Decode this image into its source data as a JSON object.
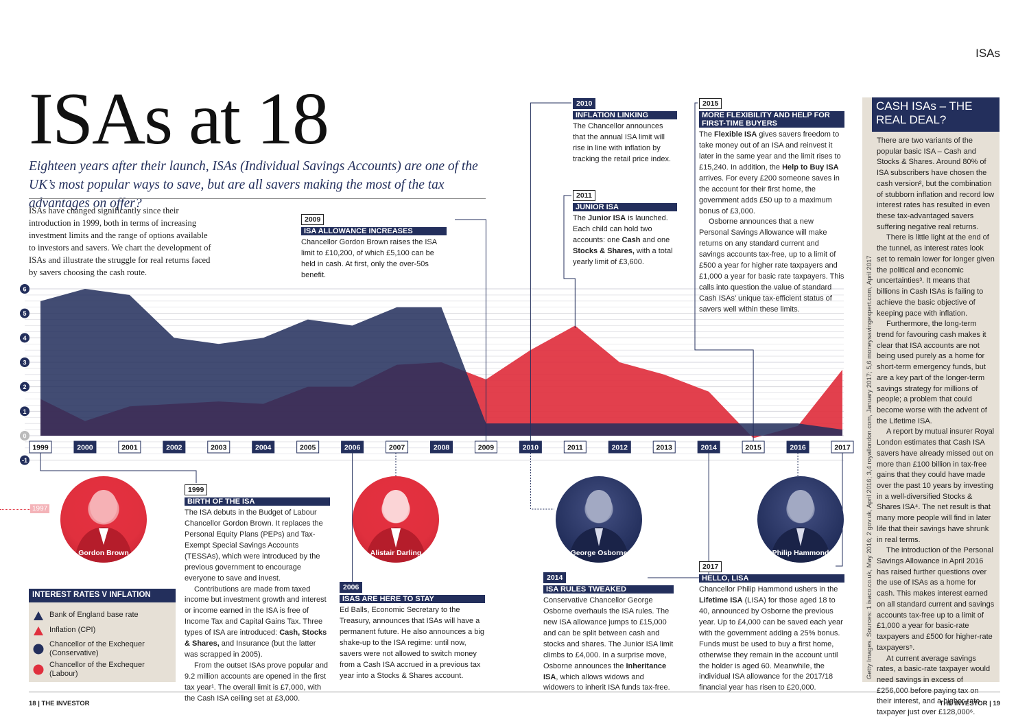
{
  "section_label": "ISAs",
  "title": "ISAs at 18",
  "subtitle": "Eighteen years after their launch, ISAs (Individual Savings Accounts) are one of the UK’s most popular ways to save, but are all savers making the most of the tax advantages on offer?",
  "intro": "ISAs have changed significantly since their introduction in 1999, both in terms of increasing investment limits and the range of options available to investors and savers. We chart the development of ISAs and illustrate the struggle for real returns faced by savers choosing the cash route.",
  "cards": {
    "c2009": {
      "year": "2009",
      "heading": "ISA ALLOWANCE INCREASES",
      "paras": [
        "Chancellor Gordon Brown raises the ISA limit to £10,200, of which £5,100 can be held in cash. At first, only the over-50s benefit."
      ]
    },
    "c2010": {
      "year": "2010",
      "heading": "INFLATION LINKING",
      "paras": [
        "The Chancellor announces that the annual ISA limit will rise in line with inflation by tracking the retail price index."
      ]
    },
    "c2011": {
      "year": "2011",
      "heading": "JUNIOR ISA",
      "paras": [
        "The Junior ISA is launched. Each child can hold two accounts: one Cash and one Stocks & Shares, with a total yearly limit of £3,600."
      ]
    },
    "c2015": {
      "year": "2015",
      "heading": "MORE FLEXIBILITY AND HELP FOR FIRST-TIME BUYERS",
      "paras": [
        "The Flexible ISA gives savers freedom to take money out of an ISA and reinvest it later in the same year and the limit rises to £15,240. In addition, the Help to Buy ISA arrives. For every £200 someone saves in the account for their first home, the government adds £50 up to a maximum bonus of £3,000.",
        "Osborne announces that a new Personal Savings Allowance will make returns on any standard current and savings accounts tax-free, up to a limit of £500 a year for higher rate taxpayers and £1,000 a year for basic rate taxpayers. This calls into question the value of standard Cash ISAs’ unique tax-efficient status of savers well within these limits."
      ]
    },
    "c1999": {
      "year": "1999",
      "heading": "BIRTH OF THE ISA",
      "paras": [
        "The ISA debuts in the Budget of Labour Chancellor Gordon Brown. It replaces the Personal Equity Plans (PEPs) and Tax-Exempt Special Savings Accounts (TESSAs), which were introduced by the previous government to encourage everyone to save and invest.",
        "Contributions are made from taxed income but investment growth and interest or income earned in the ISA is free of Income Tax and Capital Gains Tax. Three types of ISA are introduced: Cash, Stocks & Shares, and Insurance (but the latter was scrapped in 2005).",
        "From the outset ISAs prove popular and 9.2 million accounts are opened in the first tax year¹. The overall limit is £7,000, with the Cash ISA ceiling set at £3,000."
      ]
    },
    "c2006": {
      "year": "2006",
      "heading": "ISAs ARE HERE TO STAY",
      "paras": [
        "Ed Balls, Economic Secretary to the Treasury, announces that ISAs will have a permanent future. He also announces a big shake-up to the ISA regime: until now, savers were not allowed to switch money from a Cash ISA accrued in a previous tax year into a Stocks & Shares account."
      ]
    },
    "c2014": {
      "year": "2014",
      "heading": "ISA RULES TWEAKED",
      "paras": [
        "Conservative Chancellor George Osborne overhauls the ISA rules. The new ISA allowance jumps to £15,000 and can be split between cash and stocks and shares. The Junior ISA limit climbs to £4,000. In a surprise move, Osborne announces the Inheritance ISA, which allows widows and widowers to inherit ISA funds tax-free."
      ]
    },
    "c2017": {
      "year": "2017",
      "heading": "HELLO, LISA",
      "paras": [
        "Chancellor Philip Hammond ushers in the Lifetime ISA (LISA) for those aged 18 to 40, announced by Osborne the previous year. Up to £4,000 can be saved each year with the government adding a 25% bonus. Funds must be used to buy a first home, otherwise they remain in the account until the holder is aged 60. Meanwhile, the individual ISA allowance for the 2017/18 financial year has risen to £20,000."
      ]
    }
  },
  "people": {
    "brown": "Gordon Brown",
    "darling": "Alistair Darling",
    "osborne": "George Osborne",
    "hammond": "Philip Hammond"
  },
  "marker_1997": "1997",
  "sidebar": {
    "title": "CASH ISAs – THE REAL DEAL?",
    "paras": [
      "There are two variants of the popular basic ISA – Cash and Stocks & Shares. Around 80% of ISA subscribers have chosen the cash version², but the combination of stubborn inflation and record low interest rates has resulted in even these tax-advantaged savers suffering negative real returns.",
      "There is little light at the end of the tunnel, as interest rates look set to remain lower for longer given the political and economic uncertainties³. It means that billions in Cash ISAs is failing to achieve the basic objective of keeping pace with inflation.",
      "Furthermore, the long-term trend for favouring cash makes it clear that ISA accounts are not being used purely as a home for short-term emergency funds, but are a key part of the longer-term savings strategy for millions of people; a problem that could become worse with the advent of the Lifetime ISA.",
      "A report by mutual insurer Royal London estimates that Cash ISA savers have already missed out on more than £100 billion in tax-free gains that they could have made over the past 10 years by investing in a well-diversified Stocks & Shares ISA⁴. The net result is that many more people will find in later life that their savings have shrunk in real terms.",
      "The introduction of the Personal Savings Allowance in April 2016 has raised further questions over the use of ISAs as a home for cash. This makes interest earned on all standard current and savings accounts tax-free up to a limit of £1,000 a year for basic-rate taxpayers and £500 for higher-rate taxpayers⁵.",
      "At current average savings rates, a basic-rate taxpayer would need savings in excess of £256,000 before paying tax on their interest, and a higher-rate taxpayer just over £128,000⁶."
    ]
  },
  "sources": "Getty Images. Sources: 1 isaco.co.uk, May 2016; 2 gov.uk, April 2016; 3,4 royallondon.com, January 2017; 5,6 moneysavingexpert.com, April 2017",
  "legend": {
    "title": "INTEREST RATES V INFLATION",
    "items": [
      "Bank of England base rate",
      "Inflation (CPI)",
      "Chancellor of the Exchequer (Conservative)",
      "Chancellor of the Exchequer (Labour)"
    ]
  },
  "footer": {
    "left": "18 | THE INVESTOR",
    "right": "THE INVESTOR | 19"
  },
  "colors": {
    "navy": "#232f5c",
    "red": "#e0303e",
    "cream": "#e6e0d6"
  },
  "chart_data": {
    "type": "area",
    "title": "Interest rates v inflation",
    "x": [
      "1999",
      "2000",
      "2001",
      "2002",
      "2003",
      "2004",
      "2005",
      "2006",
      "2007",
      "2008",
      "2009",
      "2010",
      "2011",
      "2012",
      "2013",
      "2014",
      "2015",
      "2016",
      "2017"
    ],
    "ylim": [
      -1,
      6
    ],
    "yticks": [
      -1,
      0,
      1,
      2,
      3,
      4,
      5,
      6
    ],
    "series": [
      {
        "name": "Bank of England base rate",
        "values": [
          5.5,
          6.0,
          5.75,
          4.0,
          3.75,
          4.0,
          4.75,
          4.5,
          5.25,
          5.25,
          0.5,
          0.5,
          0.5,
          0.5,
          0.5,
          0.5,
          0.5,
          0.5,
          0.25
        ]
      },
      {
        "name": "Inflation (CPI)",
        "values": [
          1.5,
          0.6,
          1.2,
          1.3,
          1.4,
          1.3,
          2.0,
          2.0,
          2.9,
          3.0,
          2.3,
          3.5,
          4.5,
          3.0,
          2.5,
          1.8,
          -0.1,
          0.4,
          2.7
        ]
      }
    ]
  }
}
